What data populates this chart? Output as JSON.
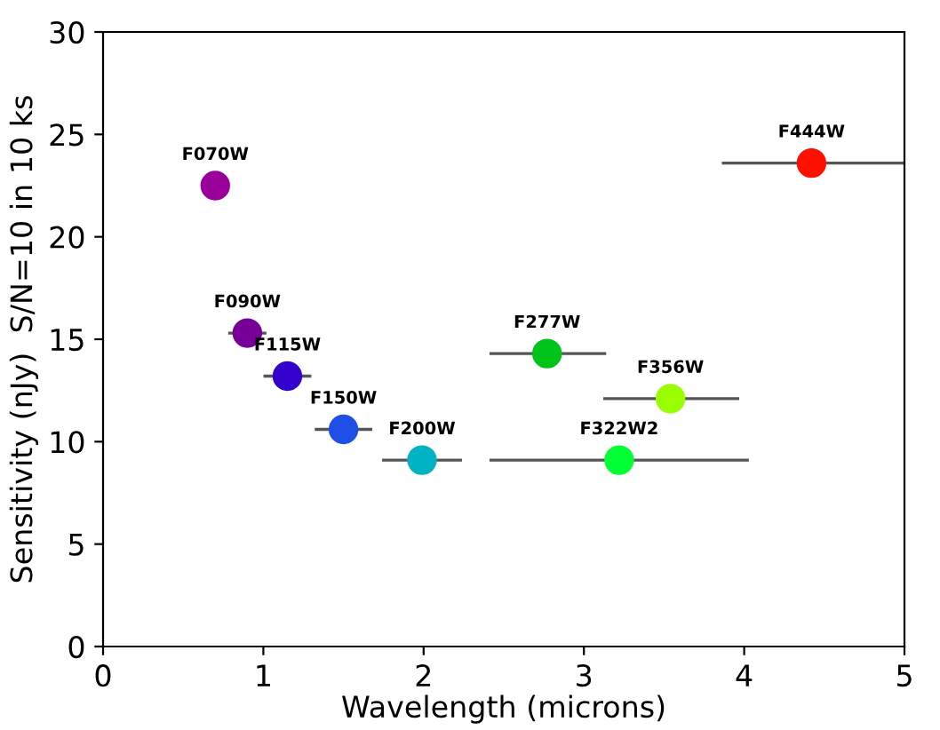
{
  "chart_data": {
    "type": "scatter",
    "xlabel": "Wavelength (microns)",
    "ylabel": "Sensitivity (nJy)  S/N=10 in 10 ks",
    "x": [
      0.7,
      0.9,
      1.15,
      1.5,
      1.99,
      2.77,
      3.22,
      3.54,
      4.42
    ],
    "values": [
      22.5,
      15.3,
      13.2,
      10.6,
      9.1,
      14.3,
      9.1,
      12.1,
      23.6
    ],
    "colors": [
      "#990099",
      "#770099",
      "#3300cc",
      "#1f4fe6",
      "#00b3c2",
      "#00c41a",
      "#00ff33",
      "#99ff00",
      "#ff1100"
    ],
    "xerrors": [
      null,
      [
        0.79,
        1.01
      ],
      [
        1.01,
        1.29
      ],
      [
        1.33,
        1.67
      ],
      [
        1.75,
        2.23
      ],
      [
        2.42,
        3.13
      ],
      [
        2.42,
        4.02
      ],
      [
        3.13,
        3.96
      ],
      [
        3.87,
        4.99
      ]
    ],
    "annotations": [
      {
        "text": "F070W",
        "x": 0.7,
        "y": 22.5
      },
      {
        "text": "F090W",
        "x": 0.9,
        "y": 15.3
      },
      {
        "text": "F115W",
        "x": 1.15,
        "y": 13.2
      },
      {
        "text": "F150W",
        "x": 1.5,
        "y": 10.6
      },
      {
        "text": "F200W",
        "x": 1.99,
        "y": 9.1
      },
      {
        "text": "F277W",
        "x": 2.77,
        "y": 14.3
      },
      {
        "text": "F322W2",
        "x": 3.22,
        "y": 9.1
      },
      {
        "text": "F356W",
        "x": 3.54,
        "y": 12.1
      },
      {
        "text": "F444W",
        "x": 4.42,
        "y": 23.6
      }
    ],
    "xlim": [
      0,
      5
    ],
    "ylim": [
      0,
      30
    ],
    "xticks": [
      0,
      1,
      2,
      3,
      4,
      5
    ],
    "yticks": [
      0,
      5,
      10,
      15,
      20,
      25,
      30
    ],
    "marker": "circle",
    "grid": false,
    "legend": false
  }
}
